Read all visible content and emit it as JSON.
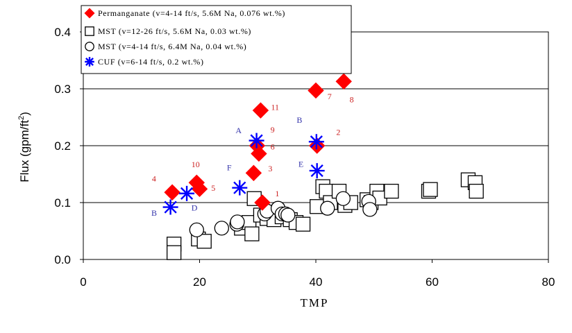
{
  "chart_data": {
    "type": "scatter",
    "xlabel": "TMP",
    "ylabel": "Flux (gpm/ft",
    "ylabel_sup": "2",
    "ylabel_close": ")",
    "xlim": [
      0,
      80
    ],
    "ylim": [
      0,
      0.4
    ],
    "xticks": [
      0,
      20,
      40,
      60,
      80
    ],
    "xtick_labels": [
      "0",
      "20",
      "40",
      "60",
      "80"
    ],
    "yticks": [
      0,
      0.1,
      0.2,
      0.3,
      0.4
    ],
    "ytick_labels": [
      "0.0",
      "0.1",
      "0.2",
      "0.3",
      "0.4"
    ],
    "grid": "horizontal",
    "legend_position": "top-left",
    "colors": {
      "red": "#ff0000",
      "blue": "#0000ff",
      "annotation_red": "#cc2222",
      "annotation_blue": "#3333aa"
    },
    "series": [
      {
        "name": "Permanganate (v=4-14 ft/s, 5.6M Na, 0.076 wt.%)",
        "marker": "diamond",
        "color": "#ff0000",
        "points": [
          [
            15.3,
            0.118
          ],
          [
            19.5,
            0.135
          ],
          [
            20.0,
            0.124
          ],
          [
            29.3,
            0.152
          ],
          [
            29.9,
            0.2
          ],
          [
            30.2,
            0.186
          ],
          [
            30.5,
            0.262
          ],
          [
            30.8,
            0.1
          ],
          [
            40.0,
            0.297
          ],
          [
            40.2,
            0.2
          ],
          [
            44.8,
            0.313
          ]
        ]
      },
      {
        "name": "MST (v=12-26 ft/s, 5.6M Na, 0.03 wt.%)",
        "marker": "square",
        "color": "#000000",
        "points": [
          [
            15.6,
            0.027
          ],
          [
            15.6,
            0.012
          ],
          [
            19.8,
            0.036
          ],
          [
            20.8,
            0.032
          ],
          [
            27.2,
            0.055
          ],
          [
            28.5,
            0.065
          ],
          [
            29.0,
            0.045
          ],
          [
            29.4,
            0.107
          ],
          [
            30.5,
            0.078
          ],
          [
            31.6,
            0.072
          ],
          [
            32.8,
            0.07
          ],
          [
            34.2,
            0.075
          ],
          [
            35.6,
            0.07
          ],
          [
            36.6,
            0.065
          ],
          [
            37.8,
            0.062
          ],
          [
            40.2,
            0.093
          ],
          [
            41.2,
            0.128
          ],
          [
            41.8,
            0.12
          ],
          [
            42.5,
            0.1
          ],
          [
            44.0,
            0.12
          ],
          [
            45.0,
            0.095
          ],
          [
            46.0,
            0.1
          ],
          [
            48.8,
            0.105
          ],
          [
            49.5,
            0.1
          ],
          [
            50.5,
            0.12
          ],
          [
            51.0,
            0.108
          ],
          [
            53.0,
            0.12
          ],
          [
            59.4,
            0.12
          ],
          [
            59.7,
            0.123
          ],
          [
            66.2,
            0.14
          ],
          [
            67.4,
            0.135
          ],
          [
            67.6,
            0.12
          ]
        ]
      },
      {
        "name": "MST (v=4-14 ft/s, 6.4M Na, 0.04 wt.%)",
        "marker": "circle",
        "color": "#000000",
        "points": [
          [
            19.5,
            0.052
          ],
          [
            23.8,
            0.055
          ],
          [
            26.4,
            0.062
          ],
          [
            26.5,
            0.066
          ],
          [
            31.2,
            0.08
          ],
          [
            31.6,
            0.085
          ],
          [
            33.5,
            0.09
          ],
          [
            34.2,
            0.08
          ],
          [
            34.8,
            0.08
          ],
          [
            35.2,
            0.078
          ],
          [
            42.0,
            0.09
          ],
          [
            44.7,
            0.107
          ],
          [
            49.1,
            0.102
          ],
          [
            49.3,
            0.088
          ]
        ]
      },
      {
        "name": "CUF (v=6-14 ft/s, 0.2 wt.%)",
        "marker": "star",
        "color": "#0000ff",
        "points": [
          [
            15.0,
            0.092
          ],
          [
            17.8,
            0.116
          ],
          [
            26.9,
            0.126
          ],
          [
            29.8,
            0.209
          ],
          [
            40.1,
            0.207
          ],
          [
            40.2,
            0.156
          ]
        ]
      }
    ],
    "annotations": [
      {
        "text": "4",
        "x": 11.8,
        "y": 0.137,
        "color": "red"
      },
      {
        "text": "10",
        "x": 18.6,
        "y": 0.162,
        "color": "red"
      },
      {
        "text": "5",
        "x": 22.0,
        "y": 0.121,
        "color": "red"
      },
      {
        "text": "3",
        "x": 31.8,
        "y": 0.155,
        "color": "red"
      },
      {
        "text": "1",
        "x": 33.0,
        "y": 0.111,
        "color": "red"
      },
      {
        "text": "9",
        "x": 32.2,
        "y": 0.223,
        "color": "red"
      },
      {
        "text": "6",
        "x": 32.2,
        "y": 0.193,
        "color": "red"
      },
      {
        "text": "11",
        "x": 32.3,
        "y": 0.263,
        "color": "red"
      },
      {
        "text": "7",
        "x": 42.0,
        "y": 0.282,
        "color": "red"
      },
      {
        "text": "8",
        "x": 45.8,
        "y": 0.276,
        "color": "red"
      },
      {
        "text": "2",
        "x": 43.5,
        "y": 0.219,
        "color": "red"
      },
      {
        "text": "B",
        "x": 11.7,
        "y": 0.077,
        "color": "blue"
      },
      {
        "text": "D",
        "x": 18.6,
        "y": 0.086,
        "color": "blue"
      },
      {
        "text": "F",
        "x": 24.7,
        "y": 0.157,
        "color": "blue"
      },
      {
        "text": "A",
        "x": 26.2,
        "y": 0.222,
        "color": "blue"
      },
      {
        "text": "B",
        "x": 36.7,
        "y": 0.24,
        "color": "blue"
      },
      {
        "text": "E",
        "x": 37.0,
        "y": 0.163,
        "color": "blue"
      }
    ]
  }
}
